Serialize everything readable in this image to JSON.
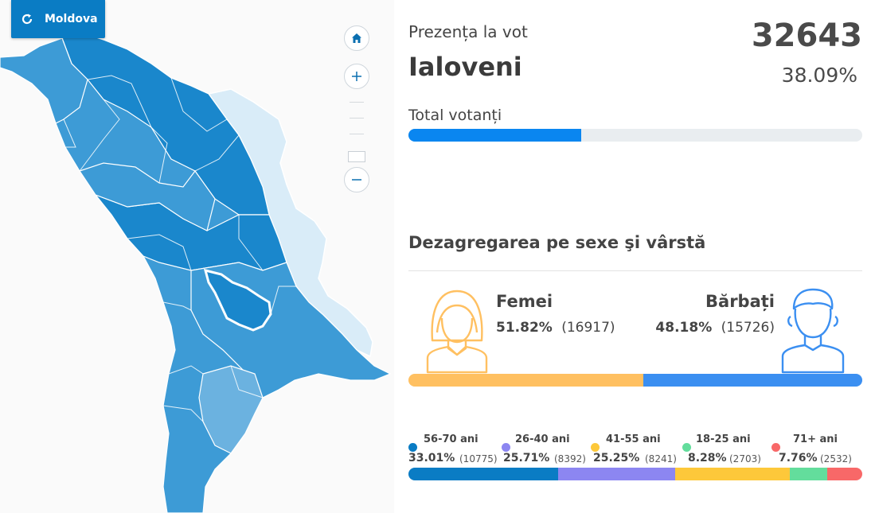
{
  "map": {
    "back_button_label": "Moldova",
    "colors": {
      "region_dark": "#1a87cc",
      "region_mid": "#3d9bd6",
      "region_light": "#6bb2e0",
      "transnistria": "#d9ecf8",
      "selected_outline": "#ffffff"
    }
  },
  "header": {
    "subtitle": "Prezența la vot",
    "region": "Ialoveni",
    "total_count": "32643",
    "turnout_pct": "38.09%"
  },
  "total_voters": {
    "label": "Total votanți",
    "fraction": 0.3809,
    "color": "#0a86f0"
  },
  "gender_section": {
    "title": "Dezagregarea pe sexe şi vârstă",
    "female": {
      "label": "Femei",
      "pct": "51.82%",
      "count": "(16917)",
      "fraction": 0.5182,
      "color": "#ffc061"
    },
    "male": {
      "label": "Bărbați",
      "pct": "48.18%",
      "count": "(15726)",
      "fraction": 0.4818,
      "color": "#3b8ff1"
    }
  },
  "age_groups": [
    {
      "label": "56-70 ani",
      "pct": "33.01%",
      "count": "(10775)",
      "fraction": 0.3301,
      "color": "#0a7cc4"
    },
    {
      "label": "26-40 ani",
      "pct": "25.71%",
      "count": "(8392)",
      "fraction": 0.2571,
      "color": "#8c86f1"
    },
    {
      "label": "41-55 ani",
      "pct": "25.25%",
      "count": "(8241)",
      "fraction": 0.2525,
      "color": "#fdc83a"
    },
    {
      "label": "18-25 ani",
      "pct": "8.28%",
      "count": "(2703)",
      "fraction": 0.0828,
      "color": "#63dd9c"
    },
    {
      "label": "71+ ani",
      "pct": "7.76%",
      "count": "(2532)",
      "fraction": 0.0776,
      "color": "#f86868"
    }
  ]
}
